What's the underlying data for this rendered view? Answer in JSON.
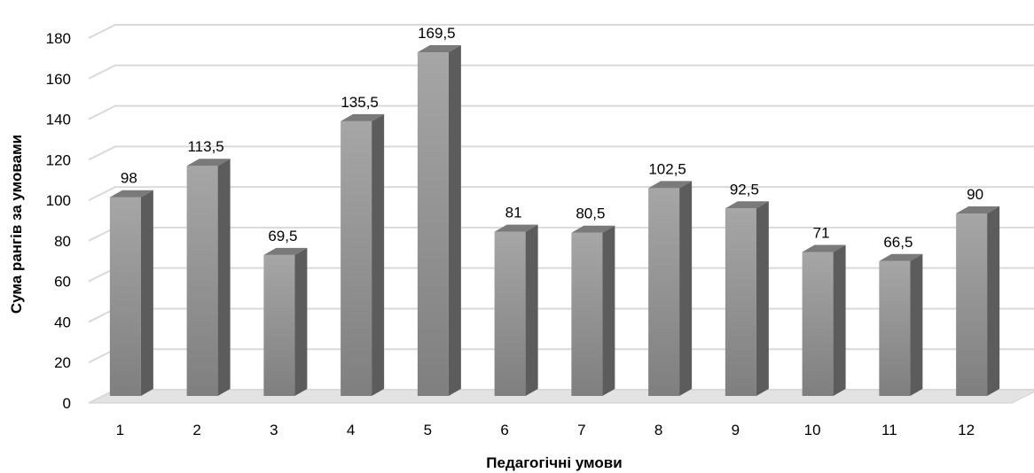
{
  "chart_data": {
    "type": "bar",
    "title": "",
    "xlabel": "Педагогічні умови",
    "ylabel": "Сума рангів за умовами",
    "categories": [
      "1",
      "2",
      "3",
      "4",
      "5",
      "6",
      "7",
      "8",
      "9",
      "10",
      "11",
      "12"
    ],
    "values": [
      98,
      113.5,
      69.5,
      135.5,
      169.5,
      81,
      80.5,
      102.5,
      92.5,
      71,
      66.5,
      90
    ],
    "value_labels": [
      "98",
      "113,5",
      "69,5",
      "135,5",
      "169,5",
      "81",
      "80,5",
      "102,5",
      "92,5",
      "71",
      "66,5",
      "90"
    ],
    "ylim": [
      0,
      180
    ],
    "yticks": [
      0,
      20,
      40,
      60,
      80,
      100,
      120,
      140,
      160,
      180
    ],
    "grid": true,
    "legend": "none",
    "style": "3d-column",
    "colors": {
      "bar_front": "#9b9b9b",
      "bar_side": "#5c5c5c",
      "bar_top": "#7a7a7a",
      "grid": "#d9d9d9",
      "floor": "#e3e3e3"
    }
  }
}
